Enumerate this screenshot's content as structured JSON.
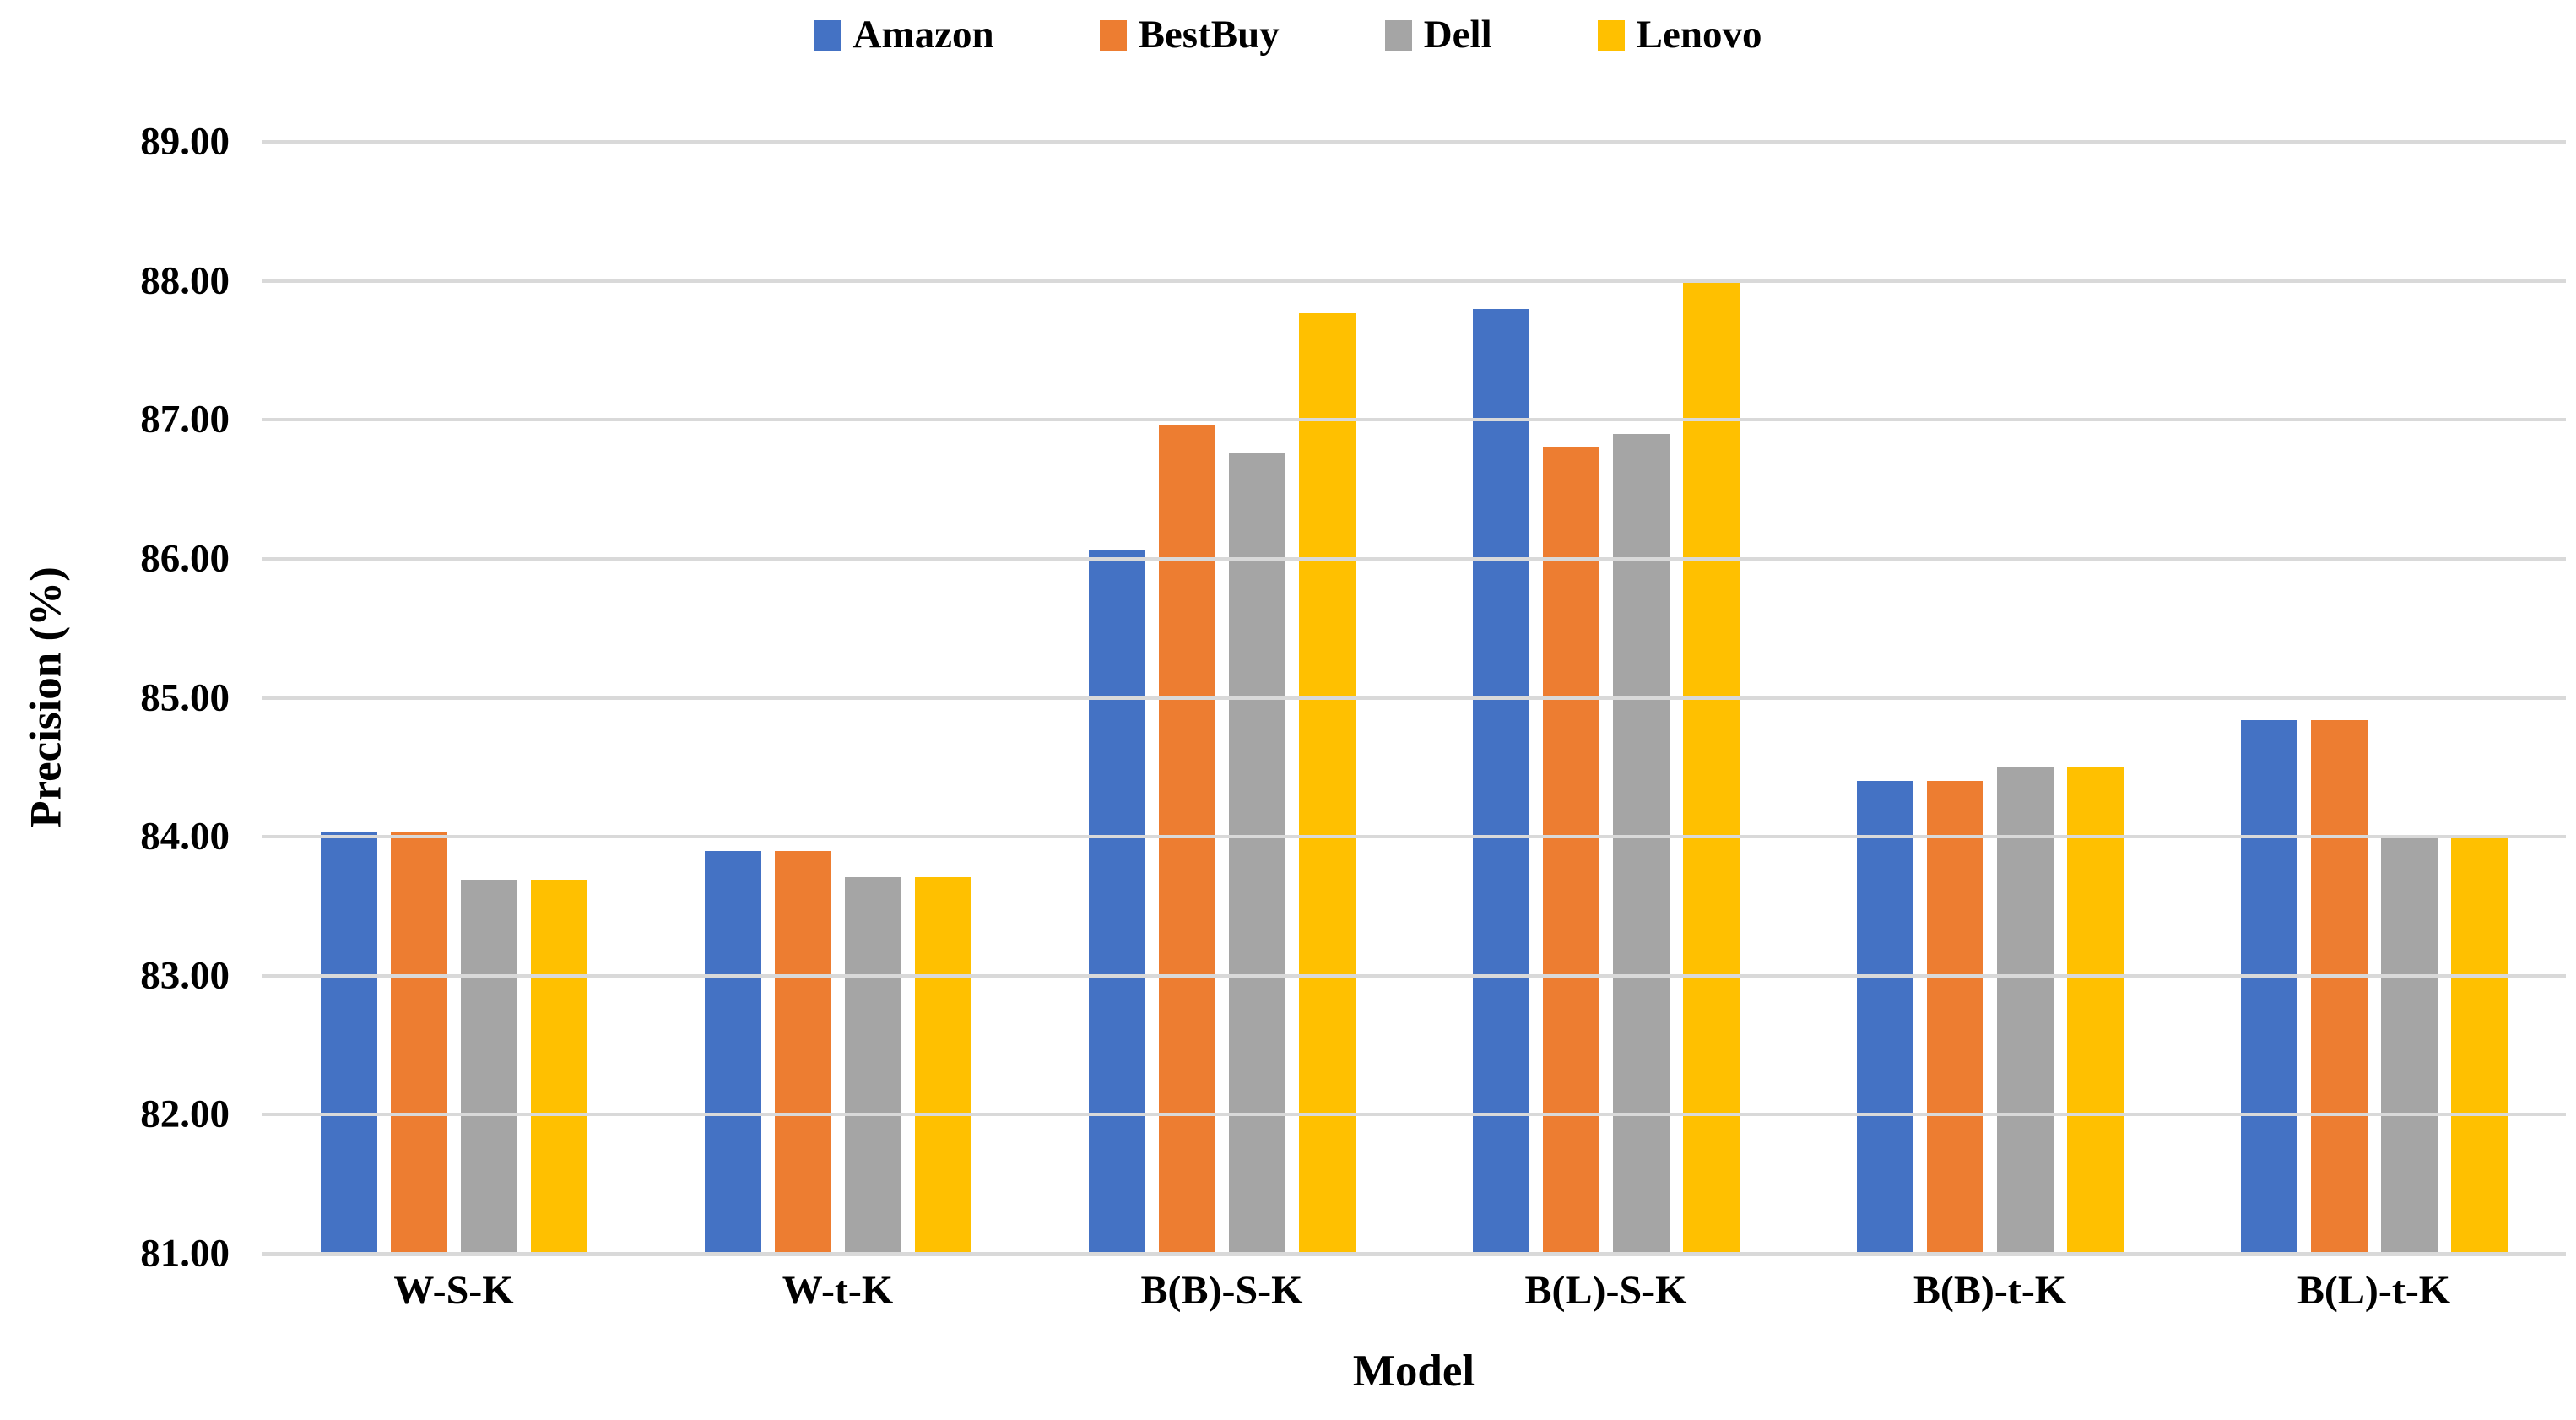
{
  "chart_data": {
    "type": "bar",
    "title": "",
    "xlabel": "Model",
    "ylabel": "Precision (%)",
    "ylim": [
      81,
      89
    ],
    "ytick_labels": [
      "89.00",
      "88.00",
      "87.00",
      "86.00",
      "85.00",
      "84.00",
      "83.00",
      "82.00",
      "81.00"
    ],
    "categories": [
      "W-S-K",
      "W-t-K",
      "B(B)-S-K",
      "B(L)-S-K",
      "B(B)-t-K",
      "B(L)-t-K"
    ],
    "series": [
      {
        "name": "Amazon",
        "color": "#4472C4",
        "values": [
          84.03,
          83.9,
          86.06,
          87.8,
          84.4,
          84.84
        ]
      },
      {
        "name": "BestBuy",
        "color": "#ED7D31",
        "values": [
          84.03,
          83.9,
          86.96,
          86.8,
          84.4,
          84.84
        ]
      },
      {
        "name": "Dell",
        "color": "#A5A5A5",
        "values": [
          83.69,
          83.71,
          86.76,
          86.9,
          84.5,
          84.0
        ]
      },
      {
        "name": "Lenovo",
        "color": "#FFC000",
        "values": [
          83.69,
          83.71,
          87.77,
          88.0,
          84.5,
          84.0
        ]
      }
    ],
    "legend_position": "top",
    "grid": true,
    "gridline_color": "#D9D9D9",
    "background": "#FFFFFF"
  }
}
